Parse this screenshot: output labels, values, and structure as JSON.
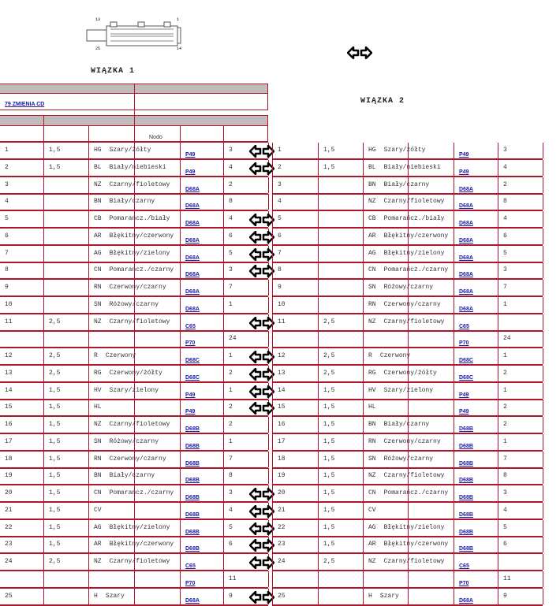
{
  "header": {
    "title1": "WIĄZKA 1",
    "title2": "WIĄZKA 2",
    "link": "79 ZMIENIA CD",
    "nodo": "Nodo",
    "connector": {
      "labels": [
        "13",
        "1",
        "25",
        "14"
      ]
    }
  },
  "icons": {
    "swap": "double-arrow-left-right-icon"
  },
  "colors": {
    "border": "#b5132a",
    "header_bg": "#c0bcbc",
    "link": "#1a1aa6"
  },
  "left": [
    [
      "1",
      "1,5",
      "HG",
      "Szary/żółty",
      "P49",
      "3",
      true
    ],
    [
      "2",
      "1,5",
      "BL",
      "Biały/niebieski",
      "P49",
      "4",
      true
    ],
    [
      "3",
      "",
      "NZ",
      "Czarny/fioletowy",
      "D68A",
      "2",
      false
    ],
    [
      "4",
      "",
      "BN",
      "Biały/czarny",
      "D68A",
      "8",
      false
    ],
    [
      "5",
      "",
      "CB",
      "Pomarańcz./biały",
      "D68A",
      "4",
      true
    ],
    [
      "6",
      "",
      "AR",
      "Błękitny/czerwony",
      "D68A",
      "6",
      true
    ],
    [
      "7",
      "",
      "AG",
      "Błękitny/zielony",
      "D68A",
      "5",
      true
    ],
    [
      "8",
      "",
      "CN",
      "Pomarańcz./czarny",
      "D68A",
      "3",
      true
    ],
    [
      "9",
      "",
      "RN",
      "Czerwony/czarny",
      "D68A",
      "7",
      false
    ],
    [
      "10",
      "",
      "SN",
      "Różowy/czarny",
      "D68A",
      "1",
      false
    ],
    [
      "11",
      "2,5",
      "NZ",
      "Czarny/fioletowy",
      "C65",
      "",
      true
    ],
    [
      "",
      "",
      "",
      "",
      "P70",
      "24",
      false
    ],
    [
      "12",
      "2,5",
      "R",
      "Czerwony",
      "D68C",
      "1",
      true
    ],
    [
      "13",
      "2,5",
      "RG",
      "Czerwony/żółty",
      "D68C",
      "2",
      true
    ],
    [
      "14",
      "1,5",
      "HV",
      "Szary/zielony",
      "P49",
      "1",
      true
    ],
    [
      "15",
      "1,5",
      "HL",
      "",
      "P49",
      "2",
      true
    ],
    [
      "16",
      "1,5",
      "NZ",
      "Czarny/fioletowy",
      "D68B",
      "2",
      false
    ],
    [
      "17",
      "1,5",
      "SN",
      "Różowy/czarny",
      "D68B",
      "1",
      false
    ],
    [
      "18",
      "1,5",
      "RN",
      "Czerwony/czarny",
      "D68B",
      "7",
      false
    ],
    [
      "19",
      "1,5",
      "BN",
      "Biały/czarny",
      "D68B",
      "8",
      false
    ],
    [
      "20",
      "1,5",
      "CN",
      "Pomarańcz./czarny",
      "D68B",
      "3",
      true
    ],
    [
      "21",
      "1,5",
      "CV",
      "",
      "D68B",
      "4",
      true
    ],
    [
      "22",
      "1,5",
      "AG",
      "Błękitny/zielony",
      "D68B",
      "5",
      true
    ],
    [
      "23",
      "1,5",
      "AR",
      "Błękitny/czerwony",
      "D68B",
      "6",
      true
    ],
    [
      "24",
      "2,5",
      "NZ",
      "Czarny/fioletowy",
      "C65",
      "",
      true
    ],
    [
      "",
      "",
      "",
      "",
      "P70",
      "11",
      false
    ],
    [
      "25",
      "",
      "H",
      "Szary",
      "D68A",
      "9",
      true
    ]
  ],
  "right": [
    [
      "1",
      "1,5",
      "HG",
      "Szary/żółty",
      "P49",
      "3"
    ],
    [
      "2",
      "1,5",
      "BL",
      "Biały/niebieski",
      "P49",
      "4"
    ],
    [
      "3",
      "",
      "BN",
      "Biały/czarny",
      "D68A",
      "2"
    ],
    [
      "4",
      "",
      "NZ",
      "Czarny/fioletowy",
      "D68A",
      "8"
    ],
    [
      "5",
      "",
      "CB",
      "Pomarańcz./biały",
      "D68A",
      "4"
    ],
    [
      "6",
      "",
      "AR",
      "Błękitny/czerwony",
      "D68A",
      "6"
    ],
    [
      "7",
      "",
      "AG",
      "Błękitny/zielony",
      "D68A",
      "5"
    ],
    [
      "8",
      "",
      "CN",
      "Pomarańcz./czarny",
      "D68A",
      "3"
    ],
    [
      "9",
      "",
      "SN",
      "Różowy/czarny",
      "D68A",
      "7"
    ],
    [
      "10",
      "",
      "RN",
      "Czerwony/czarny",
      "D68A",
      "1"
    ],
    [
      "11",
      "2,5",
      "NZ",
      "Czarny/fioletowy",
      "C65",
      ""
    ],
    [
      "",
      "",
      "",
      "",
      "P70",
      "24"
    ],
    [
      "12",
      "2,5",
      "R",
      "Czerwony",
      "D68C",
      "1"
    ],
    [
      "13",
      "2,5",
      "RG",
      "Czerwony/żółty",
      "D68C",
      "2"
    ],
    [
      "14",
      "1,5",
      "HV",
      "Szary/zielony",
      "P49",
      "1"
    ],
    [
      "15",
      "1,5",
      "HL",
      "",
      "P49",
      "2"
    ],
    [
      "16",
      "1,5",
      "BN",
      "Biały/czarny",
      "D68B",
      "2"
    ],
    [
      "17",
      "1,5",
      "RN",
      "Czerwony/czarny",
      "D68B",
      "1"
    ],
    [
      "18",
      "1,5",
      "SN",
      "Różowy/czarny",
      "D68B",
      "7"
    ],
    [
      "19",
      "1,5",
      "NZ",
      "Czarny/fioletowy",
      "D68B",
      "8"
    ],
    [
      "20",
      "1,5",
      "CN",
      "Pomarańcz./czarny",
      "D68B",
      "3"
    ],
    [
      "21",
      "1,5",
      "CV",
      "",
      "D68B",
      "4"
    ],
    [
      "22",
      "1,5",
      "AG",
      "Błękitny/zielony",
      "D68B",
      "5"
    ],
    [
      "23",
      "1,5",
      "AR",
      "Błękitny/czerwony",
      "D68B",
      "6"
    ],
    [
      "24",
      "2,5",
      "NZ",
      "Czarny/fioletowy",
      "C65",
      ""
    ],
    [
      "",
      "",
      "",
      "",
      "P70",
      "11"
    ],
    [
      "25",
      "",
      "H",
      "Szary",
      "D68A",
      "9"
    ]
  ]
}
